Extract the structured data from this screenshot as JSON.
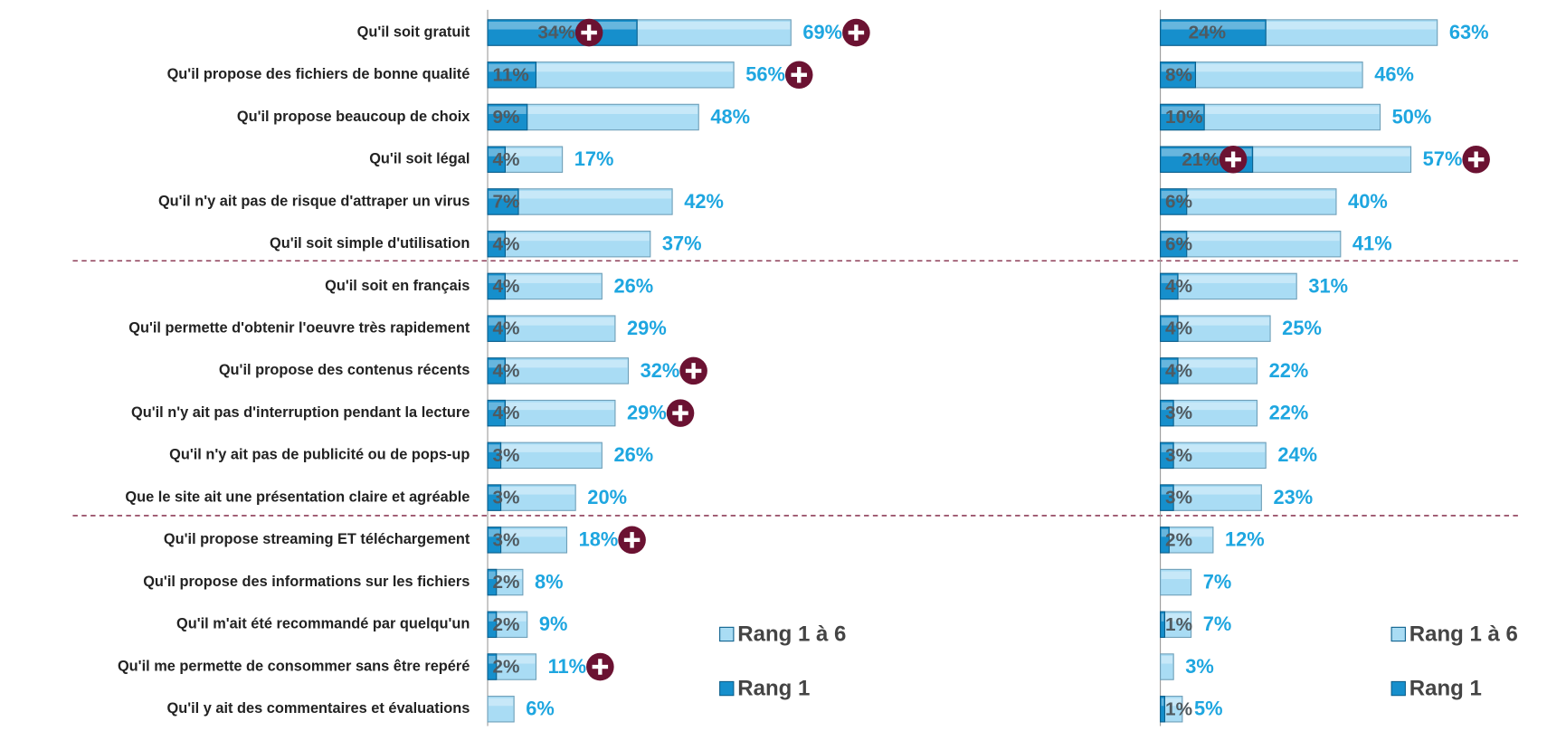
{
  "chart_data": [
    {
      "type": "bar",
      "orientation": "horizontal",
      "overlap": true,
      "categories": [
        "Qu'il soit gratuit",
        "Qu'il propose des fichiers de bonne qualité",
        "Qu'il propose beaucoup de choix",
        "Qu'il soit légal",
        "Qu'il n'y ait pas de risque d'attraper un virus",
        "Qu'il soit simple d'utilisation",
        "Qu'il soit en français",
        "Qu'il permette d'obtenir l'oeuvre très rapidement",
        "Qu'il propose des contenus récents",
        "Qu'il n'y ait pas d'interruption pendant la lecture",
        "Qu'il n'y ait pas de publicité ou de pops-up",
        "Que le site ait une présentation claire et agréable",
        "Qu'il propose streaming ET téléchargement",
        "Qu'il propose des informations sur les fichiers",
        "Qu'il m'ait été recommandé par quelqu'un",
        "Qu'il me permette de consommer sans être repéré",
        "Qu'il y ait des commentaires et évaluations"
      ],
      "series": [
        {
          "name": "Rang 1 à 6",
          "color": "#a9dcf4",
          "values": [
            69,
            56,
            48,
            17,
            42,
            37,
            26,
            29,
            32,
            29,
            26,
            20,
            18,
            8,
            9,
            11,
            6
          ],
          "value_labels": [
            "69%",
            "56%",
            "48%",
            "17%",
            "42%",
            "37%",
            "26%",
            "29%",
            "32%",
            "29%",
            "26%",
            "20%",
            "18%",
            "8%",
            "9%",
            "11%",
            "6%"
          ],
          "highlight": [
            true,
            true,
            false,
            false,
            false,
            false,
            false,
            false,
            true,
            true,
            false,
            false,
            true,
            false,
            false,
            true,
            false
          ]
        },
        {
          "name": "Rang 1",
          "color": "#168fcc",
          "values": [
            34,
            11,
            9,
            4,
            7,
            4,
            4,
            4,
            4,
            4,
            3,
            3,
            3,
            2,
            2,
            2,
            null
          ],
          "value_labels": [
            "34%",
            "11%",
            "9%",
            "4%",
            "7%",
            "4%",
            "4%",
            "4%",
            "4%",
            "4%",
            "3%",
            "3%",
            "3%",
            "2%",
            "2%",
            "2%",
            null
          ],
          "highlight": [
            true,
            false,
            false,
            false,
            false,
            false,
            false,
            false,
            false,
            false,
            false,
            false,
            false,
            false,
            false,
            false,
            false
          ]
        }
      ]
    },
    {
      "type": "bar",
      "orientation": "horizontal",
      "overlap": true,
      "series": [
        {
          "name": "Rang 1 à 6",
          "color": "#a9dcf4",
          "values": [
            63,
            46,
            50,
            57,
            40,
            41,
            31,
            25,
            22,
            22,
            24,
            23,
            12,
            7,
            7,
            3,
            5
          ],
          "value_labels": [
            "63%",
            "46%",
            "50%",
            "57%",
            "40%",
            "41%",
            "31%",
            "25%",
            "22%",
            "22%",
            "24%",
            "23%",
            "12%",
            "7%",
            "7%",
            "3%",
            "5%"
          ],
          "highlight": [
            false,
            false,
            false,
            true,
            false,
            false,
            false,
            false,
            false,
            false,
            false,
            false,
            false,
            false,
            false,
            false,
            false
          ]
        },
        {
          "name": "Rang 1",
          "color": "#168fcc",
          "values": [
            24,
            8,
            10,
            21,
            6,
            6,
            4,
            4,
            4,
            3,
            3,
            3,
            2,
            null,
            1,
            null,
            1
          ],
          "value_labels": [
            "24%",
            "8%",
            "10%",
            "21%",
            "6%",
            "6%",
            "4%",
            "4%",
            "4%",
            "3%",
            "3%",
            "3%",
            "2%",
            null,
            "1%",
            null,
            "1%"
          ],
          "highlight": [
            false,
            false,
            false,
            true,
            false,
            false,
            false,
            false,
            false,
            false,
            false,
            false,
            false,
            false,
            false,
            false,
            false
          ]
        }
      ]
    }
  ]
}
